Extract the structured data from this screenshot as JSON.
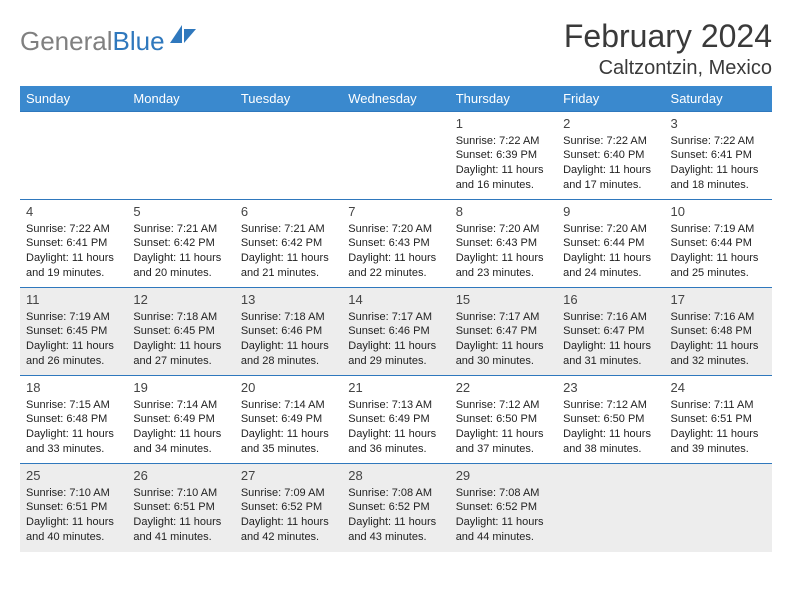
{
  "brand": {
    "part1": "General",
    "part2": "Blue"
  },
  "title": "February 2024",
  "location": "Caltzontzin, Mexico",
  "colors": {
    "header_bg": "#3a89ce",
    "header_fg": "#ffffff",
    "row_border": "#2f78bd",
    "alt_row_bg": "#ededed",
    "logo_gray": "#808080",
    "logo_blue": "#2f78bd",
    "text": "#222222"
  },
  "day_headers": [
    "Sunday",
    "Monday",
    "Tuesday",
    "Wednesday",
    "Thursday",
    "Friday",
    "Saturday"
  ],
  "weeks": [
    {
      "alt": false,
      "cells": [
        {
          "empty": true
        },
        {
          "empty": true
        },
        {
          "empty": true
        },
        {
          "empty": true
        },
        {
          "day": "1",
          "sunrise": "7:22 AM",
          "sunset": "6:39 PM",
          "daylight": "11 hours and 16 minutes."
        },
        {
          "day": "2",
          "sunrise": "7:22 AM",
          "sunset": "6:40 PM",
          "daylight": "11 hours and 17 minutes."
        },
        {
          "day": "3",
          "sunrise": "7:22 AM",
          "sunset": "6:41 PM",
          "daylight": "11 hours and 18 minutes."
        }
      ]
    },
    {
      "alt": false,
      "cells": [
        {
          "day": "4",
          "sunrise": "7:22 AM",
          "sunset": "6:41 PM",
          "daylight": "11 hours and 19 minutes."
        },
        {
          "day": "5",
          "sunrise": "7:21 AM",
          "sunset": "6:42 PM",
          "daylight": "11 hours and 20 minutes."
        },
        {
          "day": "6",
          "sunrise": "7:21 AM",
          "sunset": "6:42 PM",
          "daylight": "11 hours and 21 minutes."
        },
        {
          "day": "7",
          "sunrise": "7:20 AM",
          "sunset": "6:43 PM",
          "daylight": "11 hours and 22 minutes."
        },
        {
          "day": "8",
          "sunrise": "7:20 AM",
          "sunset": "6:43 PM",
          "daylight": "11 hours and 23 minutes."
        },
        {
          "day": "9",
          "sunrise": "7:20 AM",
          "sunset": "6:44 PM",
          "daylight": "11 hours and 24 minutes."
        },
        {
          "day": "10",
          "sunrise": "7:19 AM",
          "sunset": "6:44 PM",
          "daylight": "11 hours and 25 minutes."
        }
      ]
    },
    {
      "alt": true,
      "cells": [
        {
          "day": "11",
          "sunrise": "7:19 AM",
          "sunset": "6:45 PM",
          "daylight": "11 hours and 26 minutes."
        },
        {
          "day": "12",
          "sunrise": "7:18 AM",
          "sunset": "6:45 PM",
          "daylight": "11 hours and 27 minutes."
        },
        {
          "day": "13",
          "sunrise": "7:18 AM",
          "sunset": "6:46 PM",
          "daylight": "11 hours and 28 minutes."
        },
        {
          "day": "14",
          "sunrise": "7:17 AM",
          "sunset": "6:46 PM",
          "daylight": "11 hours and 29 minutes."
        },
        {
          "day": "15",
          "sunrise": "7:17 AM",
          "sunset": "6:47 PM",
          "daylight": "11 hours and 30 minutes."
        },
        {
          "day": "16",
          "sunrise": "7:16 AM",
          "sunset": "6:47 PM",
          "daylight": "11 hours and 31 minutes."
        },
        {
          "day": "17",
          "sunrise": "7:16 AM",
          "sunset": "6:48 PM",
          "daylight": "11 hours and 32 minutes."
        }
      ]
    },
    {
      "alt": false,
      "cells": [
        {
          "day": "18",
          "sunrise": "7:15 AM",
          "sunset": "6:48 PM",
          "daylight": "11 hours and 33 minutes."
        },
        {
          "day": "19",
          "sunrise": "7:14 AM",
          "sunset": "6:49 PM",
          "daylight": "11 hours and 34 minutes."
        },
        {
          "day": "20",
          "sunrise": "7:14 AM",
          "sunset": "6:49 PM",
          "daylight": "11 hours and 35 minutes."
        },
        {
          "day": "21",
          "sunrise": "7:13 AM",
          "sunset": "6:49 PM",
          "daylight": "11 hours and 36 minutes."
        },
        {
          "day": "22",
          "sunrise": "7:12 AM",
          "sunset": "6:50 PM",
          "daylight": "11 hours and 37 minutes."
        },
        {
          "day": "23",
          "sunrise": "7:12 AM",
          "sunset": "6:50 PM",
          "daylight": "11 hours and 38 minutes."
        },
        {
          "day": "24",
          "sunrise": "7:11 AM",
          "sunset": "6:51 PM",
          "daylight": "11 hours and 39 minutes."
        }
      ]
    },
    {
      "alt": true,
      "cells": [
        {
          "day": "25",
          "sunrise": "7:10 AM",
          "sunset": "6:51 PM",
          "daylight": "11 hours and 40 minutes."
        },
        {
          "day": "26",
          "sunrise": "7:10 AM",
          "sunset": "6:51 PM",
          "daylight": "11 hours and 41 minutes."
        },
        {
          "day": "27",
          "sunrise": "7:09 AM",
          "sunset": "6:52 PM",
          "daylight": "11 hours and 42 minutes."
        },
        {
          "day": "28",
          "sunrise": "7:08 AM",
          "sunset": "6:52 PM",
          "daylight": "11 hours and 43 minutes."
        },
        {
          "day": "29",
          "sunrise": "7:08 AM",
          "sunset": "6:52 PM",
          "daylight": "11 hours and 44 minutes."
        },
        {
          "empty": true
        },
        {
          "empty": true
        }
      ]
    }
  ],
  "labels": {
    "sunrise": "Sunrise:",
    "sunset": "Sunset:",
    "daylight": "Daylight:"
  }
}
